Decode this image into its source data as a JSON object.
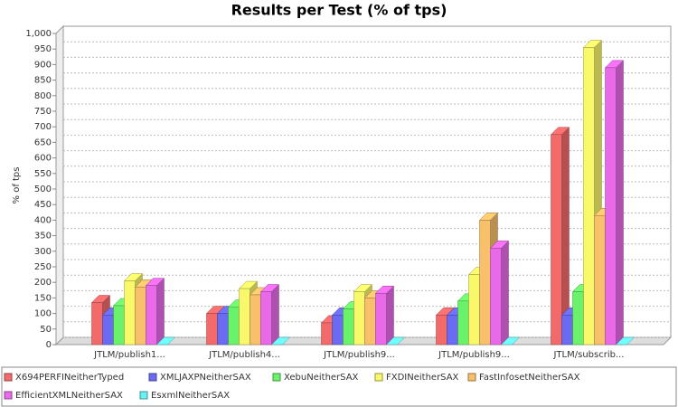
{
  "chart_data": {
    "type": "bar3d",
    "title": "Results per Test (% of tps)",
    "y_label": "% of tps",
    "categories": [
      "JTLM/publish1...",
      "JTLM/publish4...",
      "JTLM/publish9...",
      "JTLM/publish9...",
      "JTLM/subscrib..."
    ],
    "series": [
      {
        "name": "X694PERFINeitherTyped",
        "color": "#f26a6a",
        "values": [
          135,
          100,
          70,
          95,
          675
        ]
      },
      {
        "name": "XMLJAXPNeitherSAX",
        "color": "#6a6af2",
        "values": [
          95,
          100,
          95,
          95,
          95
        ]
      },
      {
        "name": "XebuNeitherSAX",
        "color": "#6af26a",
        "values": [
          125,
          120,
          115,
          140,
          170
        ]
      },
      {
        "name": "FXDINeitherSAX",
        "color": "#f8f86a",
        "values": [
          205,
          180,
          170,
          225,
          955
        ]
      },
      {
        "name": "FastInfosetNeitherSAX",
        "color": "#f8c06a",
        "values": [
          185,
          160,
          150,
          400,
          415
        ]
      },
      {
        "name": "EfficientXMLNeitherSAX",
        "color": "#e86ae8",
        "values": [
          190,
          170,
          165,
          310,
          890
        ]
      },
      {
        "name": "EsxmlNeitherSAX",
        "color": "#6af2f2",
        "values": [
          0,
          0,
          0,
          0,
          0
        ]
      }
    ],
    "ylim": [
      0,
      1000
    ],
    "yticks": [
      0,
      50,
      100,
      150,
      200,
      250,
      300,
      350,
      400,
      450,
      500,
      550,
      600,
      650,
      700,
      750,
      800,
      850,
      900,
      950,
      {
        "value": 1000,
        "label": "1,000"
      }
    ],
    "grid": true,
    "legend": "bottom"
  }
}
